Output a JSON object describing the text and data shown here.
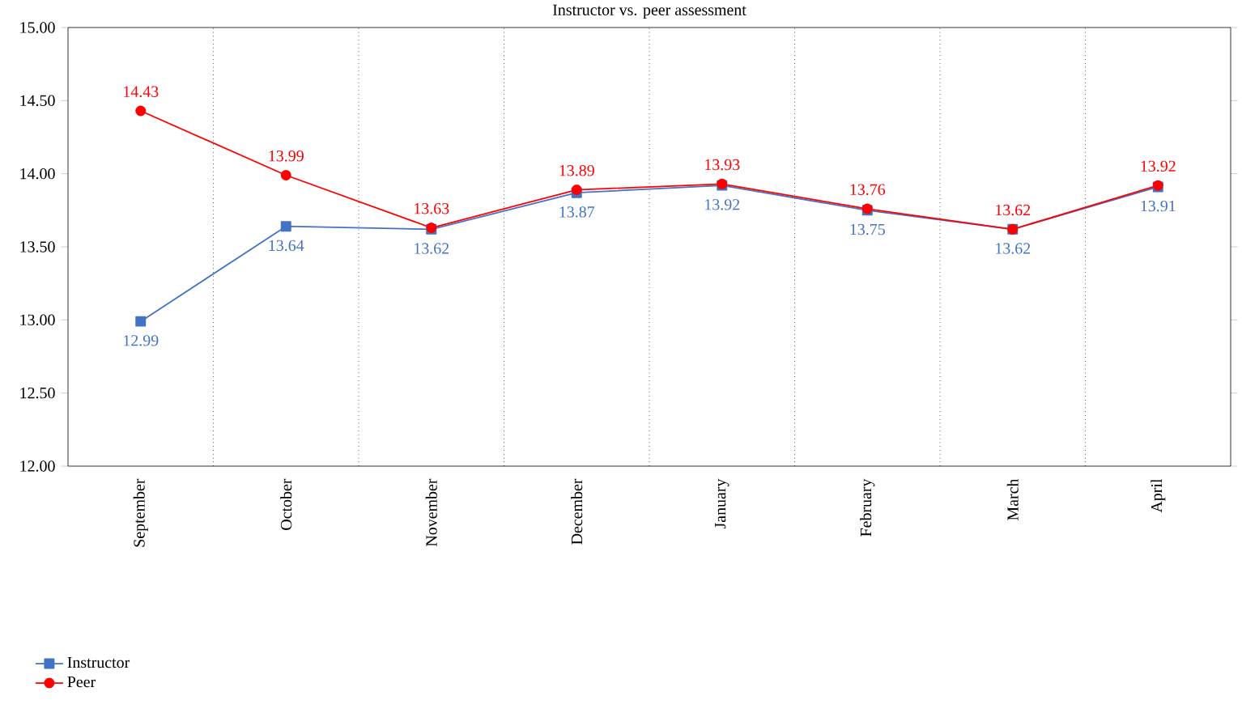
{
  "chart_data": {
    "type": "line",
    "title": "Instructor vs. peer assessment",
    "categories": [
      "September",
      "October",
      "November",
      "December",
      "January",
      "February",
      "March",
      "April"
    ],
    "series": [
      {
        "name": "Instructor",
        "color": "#4472c4",
        "marker": "square",
        "values": [
          12.99,
          13.64,
          13.62,
          13.87,
          13.92,
          13.75,
          13.62,
          13.91
        ]
      },
      {
        "name": "Peer",
        "color": "#ff0000",
        "marker": "circle",
        "values": [
          14.43,
          13.99,
          13.63,
          13.89,
          13.93,
          13.76,
          13.62,
          13.92
        ]
      }
    ],
    "ylim": [
      12,
      15
    ],
    "yticks": [
      {
        "value": 12,
        "label": "12.00"
      },
      {
        "value": 12.5,
        "label": "12.50"
      },
      {
        "value": 13,
        "label": "13.00"
      },
      {
        "value": 13.5,
        "label": "13.50"
      },
      {
        "value": 14,
        "label": "14.00"
      },
      {
        "value": 14.5,
        "label": "14.50"
      },
      {
        "value": 15,
        "label": "15.00"
      }
    ],
    "grid": "x",
    "legend": "bottom left",
    "data_labels": true,
    "line_style": "solid"
  }
}
